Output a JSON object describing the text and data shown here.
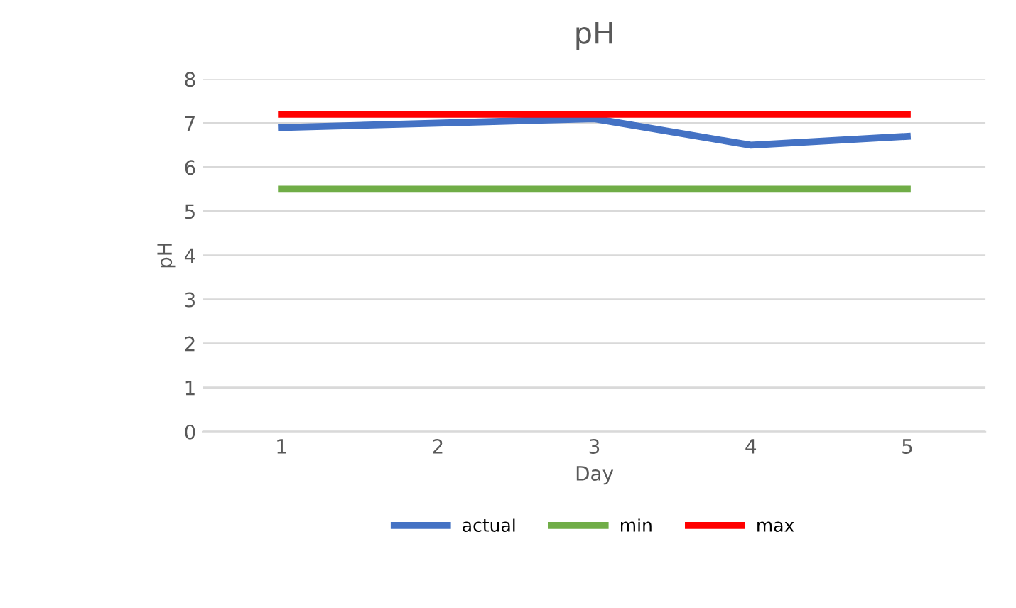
{
  "chart_data": {
    "type": "line",
    "title": "pH",
    "xlabel": "Day",
    "ylabel": "pH",
    "categories": [
      "1",
      "2",
      "3",
      "4",
      "5"
    ],
    "series": [
      {
        "name": "actual",
        "color": "#4472c4",
        "values": [
          6.9,
          7.0,
          7.1,
          6.5,
          6.7
        ]
      },
      {
        "name": "min",
        "color": "#70ad47",
        "values": [
          5.5,
          5.5,
          5.5,
          5.5,
          5.5
        ]
      },
      {
        "name": "max",
        "color": "#ff0000",
        "values": [
          7.2,
          7.2,
          7.2,
          7.2,
          7.2
        ]
      }
    ],
    "ylim": [
      0,
      8
    ],
    "yticks": [
      0,
      1,
      2,
      3,
      4,
      5,
      6,
      7,
      8
    ],
    "grid": "y",
    "legend": "bottom",
    "marker": "none",
    "line_style": "solid"
  }
}
